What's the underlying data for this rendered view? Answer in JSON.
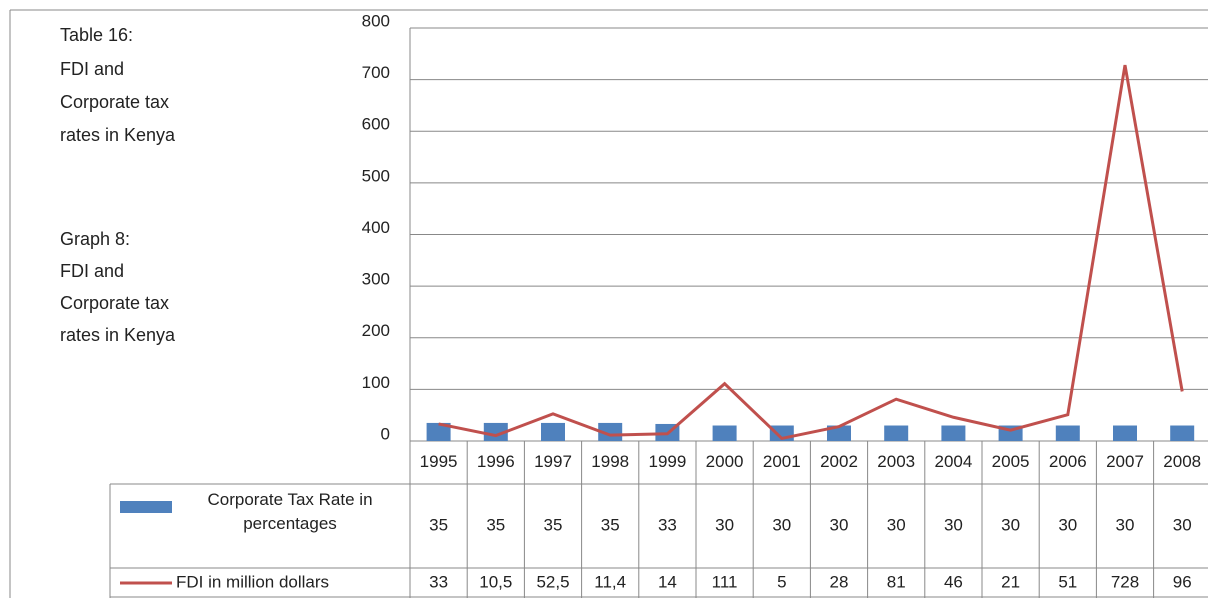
{
  "chart_data": {
    "type": "bar-line",
    "annotations": [
      "Table 16:",
      "FDI and",
      "Corporate tax",
      "rates in Kenya",
      "Graph 8:",
      "FDI and",
      "Corporate tax",
      "rates in Kenya"
    ],
    "categories": [
      "1995",
      "1996",
      "1997",
      "1998",
      "1999",
      "2000",
      "2001",
      "2002",
      "2003",
      "2004",
      "2005",
      "2006",
      "2007",
      "2008"
    ],
    "series": [
      {
        "name": "Corporate Tax Rate in percentages",
        "type": "bar",
        "color": "#4f81bd",
        "values": [
          35,
          35,
          35,
          35,
          33,
          30,
          30,
          30,
          30,
          30,
          30,
          30,
          30,
          30
        ]
      },
      {
        "name": "FDI in million dollars",
        "type": "line",
        "color": "#c0504d",
        "values": [
          33,
          10.5,
          52.5,
          11.4,
          14,
          111,
          5,
          28,
          81,
          46,
          21,
          51,
          728,
          96
        ],
        "value_labels": [
          "33",
          "10,5",
          "52,5",
          "11,4",
          "14",
          "111",
          "5",
          "28",
          "81",
          "46",
          "21",
          "51",
          "728",
          "96"
        ]
      }
    ],
    "ylim": [
      0,
      800
    ],
    "yticks": [
      0,
      100,
      200,
      300,
      400,
      500,
      600,
      700,
      800
    ],
    "grid": true
  }
}
